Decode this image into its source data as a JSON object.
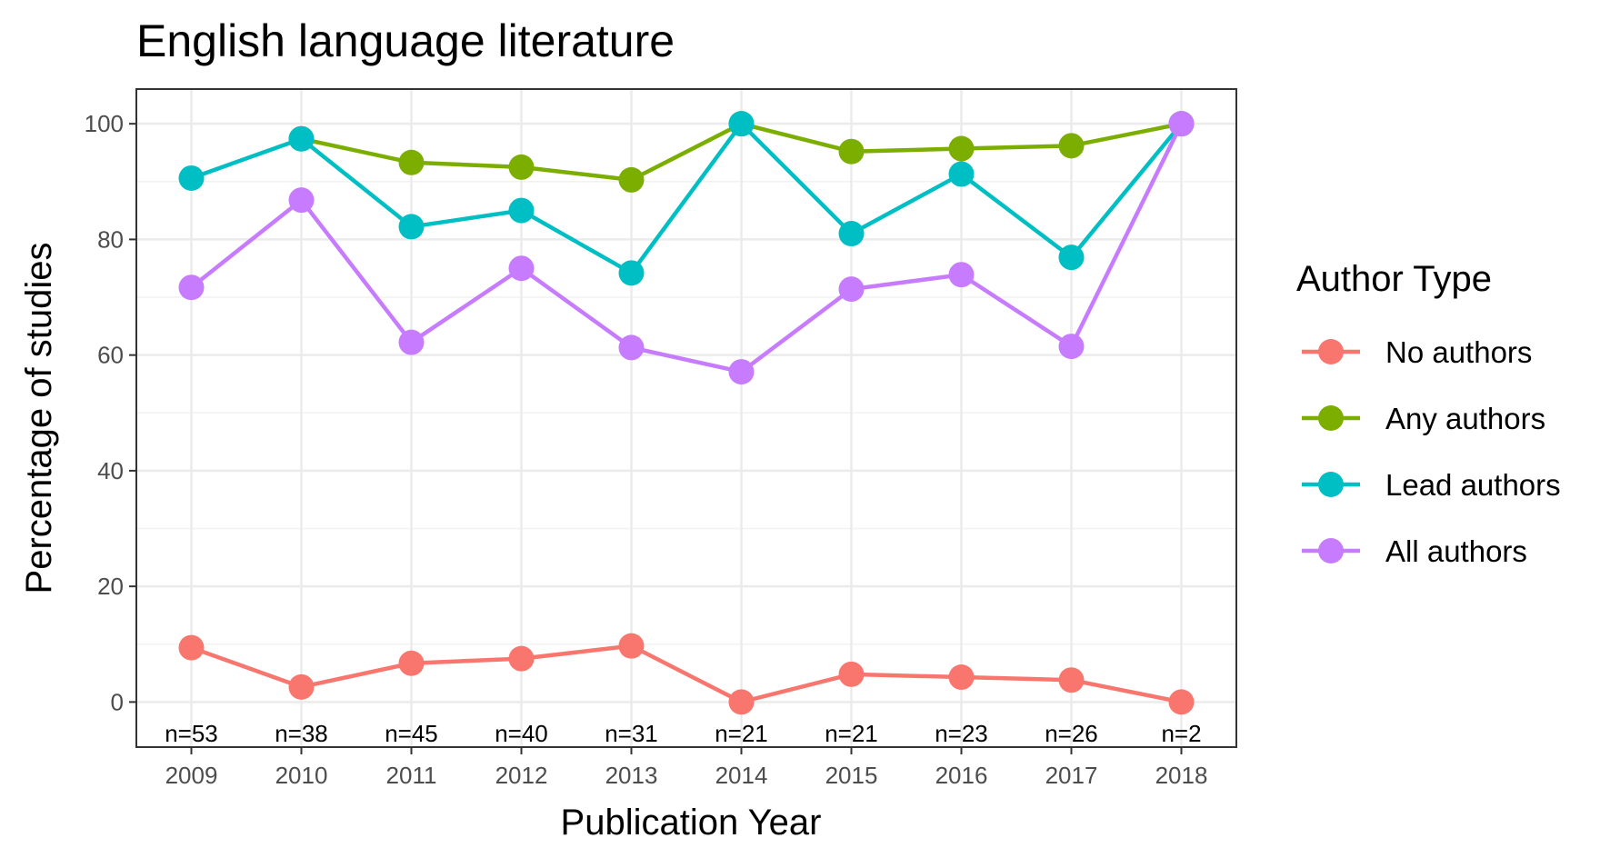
{
  "chart_data": {
    "type": "line",
    "title": "English language literature",
    "xlabel": "Publication Year",
    "ylabel": "Percentage of studies",
    "x": [
      "2009",
      "2010",
      "2011",
      "2012",
      "2013",
      "2014",
      "2015",
      "2016",
      "2017",
      "2018"
    ],
    "xlim": [
      2008.55,
      2018.45
    ],
    "ylim": [
      -7.8,
      106
    ],
    "yticks": [
      0,
      20,
      40,
      60,
      80,
      100
    ],
    "ytick_labels": [
      "0",
      "20",
      "40",
      "60",
      "80",
      "100"
    ],
    "grid": true,
    "legend": {
      "title": "Author Type",
      "position": "right"
    },
    "series": [
      {
        "name": "No authors",
        "color": "#F8766D",
        "values": [
          9.4,
          2.6,
          6.7,
          7.5,
          9.7,
          0,
          4.8,
          4.3,
          3.8,
          0
        ]
      },
      {
        "name": "Any authors",
        "color": "#7CAE00",
        "values": [
          null,
          97.4,
          93.3,
          92.5,
          90.3,
          100,
          95.2,
          95.7,
          96.2,
          100
        ]
      },
      {
        "name": "Lead authors",
        "color": "#00BFC4",
        "values": [
          90.6,
          97.4,
          82.2,
          85.0,
          74.2,
          100,
          81.0,
          91.3,
          76.9,
          100
        ]
      },
      {
        "name": "All authors",
        "color": "#C77CFF",
        "values": [
          71.7,
          86.8,
          62.2,
          75.0,
          61.3,
          57.1,
          71.4,
          73.9,
          61.5,
          100
        ]
      }
    ],
    "annotations": [
      "n=53",
      "n=38",
      "n=45",
      "n=40",
      "n=31",
      "n=21",
      "n=21",
      "n=23",
      "n=26",
      "n=2"
    ]
  }
}
